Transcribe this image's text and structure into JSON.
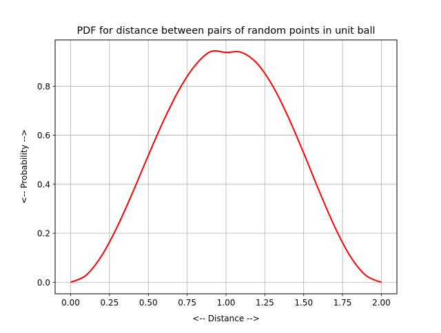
{
  "chart_data": {
    "type": "line",
    "title": "PDF for distance between pairs of random points in unit ball",
    "xlabel": "<-- Distance -->",
    "ylabel": "<-- Probability -->",
    "xlim": [
      -0.1,
      2.1
    ],
    "ylim": [
      -0.047,
      0.989
    ],
    "xticks": [
      0.0,
      0.25,
      0.5,
      0.75,
      1.0,
      1.25,
      1.5,
      1.75,
      2.0
    ],
    "xtick_labels": [
      "0.00",
      "0.25",
      "0.50",
      "0.75",
      "1.00",
      "1.25",
      "1.50",
      "1.75",
      "2.00"
    ],
    "yticks": [
      0.0,
      0.2,
      0.4,
      0.6,
      0.8
    ],
    "ytick_labels": [
      "0.0",
      "0.2",
      "0.4",
      "0.6",
      "0.8"
    ],
    "grid": true,
    "series": [
      {
        "color": "#ff0000",
        "x": [
          0.0,
          0.1,
          0.2,
          0.3,
          0.4,
          0.5,
          0.6,
          0.7,
          0.8,
          0.9,
          1.0,
          1.1,
          1.2,
          1.3,
          1.4,
          1.5,
          1.6,
          1.7,
          1.8,
          1.9,
          2.0
        ],
        "y": [
          0.0,
          0.029,
          0.109,
          0.227,
          0.368,
          0.518,
          0.662,
          0.788,
          0.884,
          0.941,
          0.938,
          0.938,
          0.893,
          0.802,
          0.675,
          0.527,
          0.372,
          0.226,
          0.106,
          0.028,
          0.0
        ]
      }
    ]
  }
}
